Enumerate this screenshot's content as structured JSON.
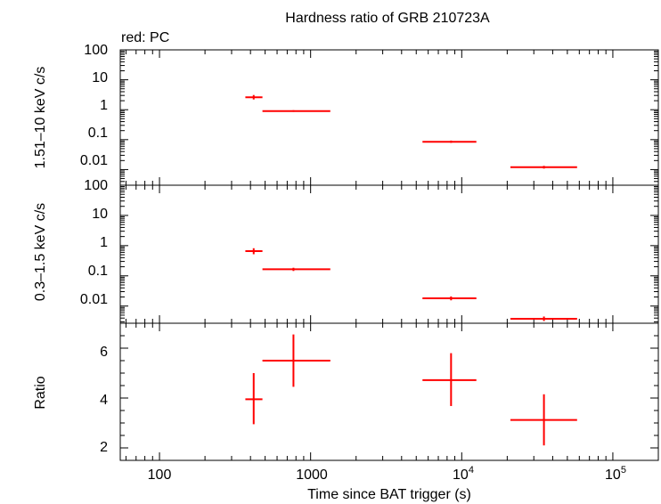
{
  "chart_data": [
    {
      "type": "scatter",
      "panel": "top",
      "title": "Hardness ratio of GRB 210723A",
      "annotation": "red: PC",
      "ylabel": "1.51–10 keV c/s",
      "yscale": "log",
      "ylim": [
        0.003,
        100
      ],
      "xscale": "log",
      "xlim": [
        55,
        200000
      ],
      "y_tick_labels": [
        "100",
        "10",
        "1",
        "0.1",
        "0.01"
      ],
      "series": [
        {
          "color": "#ff0000",
          "points": [
            {
              "x": 420,
              "xlo": 370,
              "xhi": 480,
              "y": 2.6,
              "ylo": 2.2,
              "yhi": 3.1
            },
            {
              "x": 770,
              "xlo": 480,
              "xhi": 1350,
              "y": 0.9,
              "ylo": 0.85,
              "yhi": 0.96
            },
            {
              "x": 8500,
              "xlo": 5500,
              "xhi": 12500,
              "y": 0.085,
              "ylo": 0.078,
              "yhi": 0.093
            },
            {
              "x": 35000,
              "xlo": 21000,
              "xhi": 58000,
              "y": 0.012,
              "ylo": 0.0108,
              "yhi": 0.0133
            }
          ]
        }
      ]
    },
    {
      "type": "scatter",
      "panel": "middle",
      "ylabel": "0.3–1.5 keV c/s",
      "yscale": "log",
      "ylim": [
        0.0027,
        100
      ],
      "xscale": "log",
      "xlim": [
        55,
        200000
      ],
      "y_tick_labels": [
        "100",
        "10",
        "1",
        "0.1",
        "0.01"
      ],
      "series": [
        {
          "color": "#ff0000",
          "points": [
            {
              "x": 420,
              "xlo": 370,
              "xhi": 480,
              "y": 0.66,
              "ylo": 0.52,
              "yhi": 0.82
            },
            {
              "x": 770,
              "xlo": 480,
              "xhi": 1350,
              "y": 0.165,
              "ylo": 0.145,
              "yhi": 0.185
            },
            {
              "x": 8500,
              "xlo": 5500,
              "xhi": 12500,
              "y": 0.018,
              "ylo": 0.0155,
              "yhi": 0.0208
            },
            {
              "x": 35000,
              "xlo": 21000,
              "xhi": 58000,
              "y": 0.0038,
              "ylo": 0.0032,
              "yhi": 0.0045
            }
          ]
        }
      ]
    },
    {
      "type": "scatter",
      "panel": "bottom",
      "ylabel": "Ratio",
      "xlabel": "Time since BAT trigger (s)",
      "yscale": "linear",
      "ylim": [
        1.5,
        7
      ],
      "xscale": "log",
      "xlim": [
        55,
        200000
      ],
      "y_ticks": [
        2,
        4,
        6
      ],
      "series": [
        {
          "color": "#ff0000",
          "points": [
            {
              "x": 420,
              "xlo": 370,
              "xhi": 480,
              "y": 3.95,
              "ylo": 2.95,
              "yhi": 5.0
            },
            {
              "x": 770,
              "xlo": 480,
              "xhi": 1350,
              "y": 5.5,
              "ylo": 4.45,
              "yhi": 6.55
            },
            {
              "x": 8500,
              "xlo": 5500,
              "xhi": 12500,
              "y": 4.72,
              "ylo": 3.68,
              "yhi": 5.8
            },
            {
              "x": 35000,
              "xlo": 21000,
              "xhi": 58000,
              "y": 3.12,
              "ylo": 2.1,
              "yhi": 4.15
            }
          ]
        }
      ]
    }
  ],
  "x_tick_labels": {
    "t100": "100",
    "t1000": "1000",
    "t10k_base": "10",
    "t10k_exp": "4",
    "t100k_base": "10",
    "t100k_exp": "5"
  },
  "colors": {
    "data": "#ff0000",
    "axes": "#000000"
  }
}
